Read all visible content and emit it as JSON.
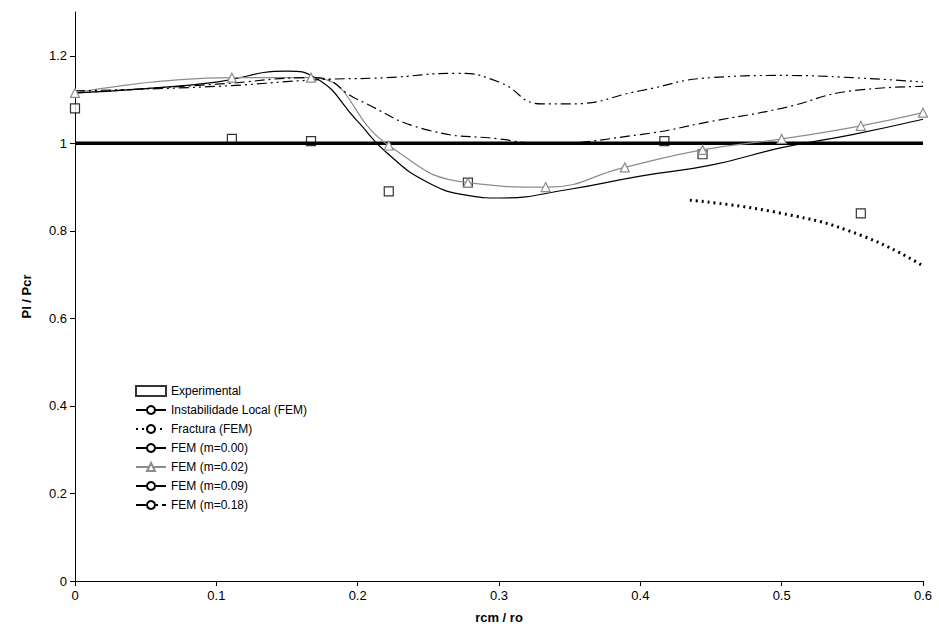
{
  "chart_data": {
    "type": "line",
    "x_label": "rcm / ro",
    "y_label": "Pl / Pcr",
    "xlim": [
      0,
      0.6
    ],
    "xticks": [
      0,
      0.1,
      0.2,
      0.3,
      0.4,
      0.5,
      0.6
    ],
    "ylim": [
      0,
      1.3
    ],
    "yticks": [
      0,
      0.2,
      0.4,
      0.6,
      0.8,
      1,
      1.2
    ],
    "grid": false,
    "legend": "lower left",
    "series": [
      {
        "name": "Experimental",
        "type": "scatter",
        "color": "#000000",
        "marker": "square",
        "x": [
          0,
          0.111,
          0.167,
          0.222,
          0.278,
          0.417,
          0.444,
          0.556
        ],
        "values": [
          1.08,
          1.01,
          1.005,
          0.89,
          0.91,
          1.005,
          0.975,
          0.84
        ]
      },
      {
        "name": "Instabilidade Local (FEM)",
        "type": "line",
        "color": "#000000",
        "marker": "none",
        "line_style": "thick",
        "x": [
          0,
          0.6
        ],
        "values": [
          1,
          1
        ]
      },
      {
        "name": "Fractura (FEM)",
        "type": "line",
        "color": "#000000",
        "marker": "none",
        "line_style": "dotted",
        "x": [
          0.435,
          0.5,
          0.556,
          0.6
        ],
        "values": [
          0.87,
          0.84,
          0.79,
          0.72
        ]
      },
      {
        "name": "FEM (m=0.00)",
        "type": "line",
        "color": "#000000",
        "marker": "none",
        "line_style": "solid",
        "x": [
          0,
          0.05,
          0.1,
          0.15,
          0.17,
          0.2,
          0.22,
          0.25,
          0.28,
          0.3,
          0.35,
          0.4,
          0.45,
          0.5,
          0.55,
          0.6
        ],
        "values": [
          1.115,
          1.125,
          1.14,
          1.165,
          1.15,
          1.05,
          0.98,
          0.91,
          0.88,
          0.875,
          0.895,
          0.925,
          0.95,
          0.99,
          1.02,
          1.055
        ]
      },
      {
        "name": "FEM (m=0.02)",
        "type": "line",
        "color": "#8c8c8c",
        "marker": "triangle",
        "line_style": "solid",
        "x": [
          0,
          0.111,
          0.167,
          0.222,
          0.278,
          0.333,
          0.389,
          0.444,
          0.5,
          0.556,
          0.6
        ],
        "values": [
          1.115,
          1.15,
          1.15,
          0.995,
          0.91,
          0.9,
          0.945,
          0.985,
          1.01,
          1.04,
          1.07
        ]
      },
      {
        "name": "FEM (m=0.09)",
        "type": "line",
        "color": "#000000",
        "marker": "none",
        "line_style": "dashdot",
        "x": [
          0,
          0.1,
          0.17,
          0.2,
          0.25,
          0.3,
          0.33,
          0.4,
          0.45,
          0.5,
          0.55,
          0.6
        ],
        "values": [
          1.115,
          1.135,
          1.15,
          1.1,
          1.03,
          1.01,
          1.0,
          1.02,
          1.05,
          1.08,
          1.12,
          1.13
        ]
      },
      {
        "name": "FEM (m=0.18)",
        "type": "line",
        "color": "#000000",
        "marker": "none",
        "line_style": "dashdotdot",
        "x": [
          0,
          0.1,
          0.17,
          0.22,
          0.27,
          0.3,
          0.33,
          0.35,
          0.4,
          0.45,
          0.5,
          0.55,
          0.6
        ],
        "values": [
          1.12,
          1.13,
          1.145,
          1.15,
          1.16,
          1.14,
          1.09,
          1.09,
          1.12,
          1.15,
          1.155,
          1.15,
          1.14
        ]
      }
    ]
  }
}
